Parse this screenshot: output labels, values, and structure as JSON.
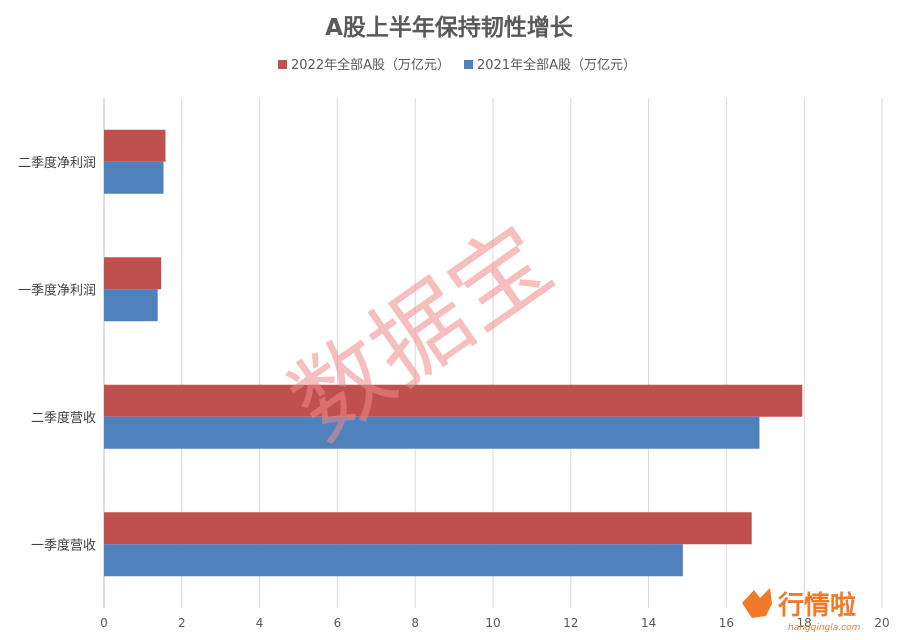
{
  "chart_data": {
    "type": "bar",
    "orientation": "horizontal",
    "title": "A股上半年保持韧性增长",
    "categories": [
      "二季度净利润",
      "一季度净利润",
      "二季度营收",
      "一季度营收"
    ],
    "series": [
      {
        "name": "2022年全部A股（万亿元）",
        "color": "#c0504d",
        "values": [
          1.58,
          1.47,
          17.95,
          16.65
        ]
      },
      {
        "name": "2021年全部A股（万亿元）",
        "color": "#4f81bd",
        "values": [
          1.53,
          1.38,
          16.85,
          14.88
        ]
      }
    ],
    "xlim": [
      0,
      20
    ],
    "xticks": [
      0,
      2,
      4,
      6,
      8,
      10,
      12,
      14,
      16,
      18,
      20
    ],
    "grid": true,
    "legend_position": "top"
  },
  "watermark": {
    "text": "数据宝"
  },
  "logo": {
    "text": "行情啦",
    "subtext": "hangqingla.com",
    "color": "#f07a2a"
  }
}
